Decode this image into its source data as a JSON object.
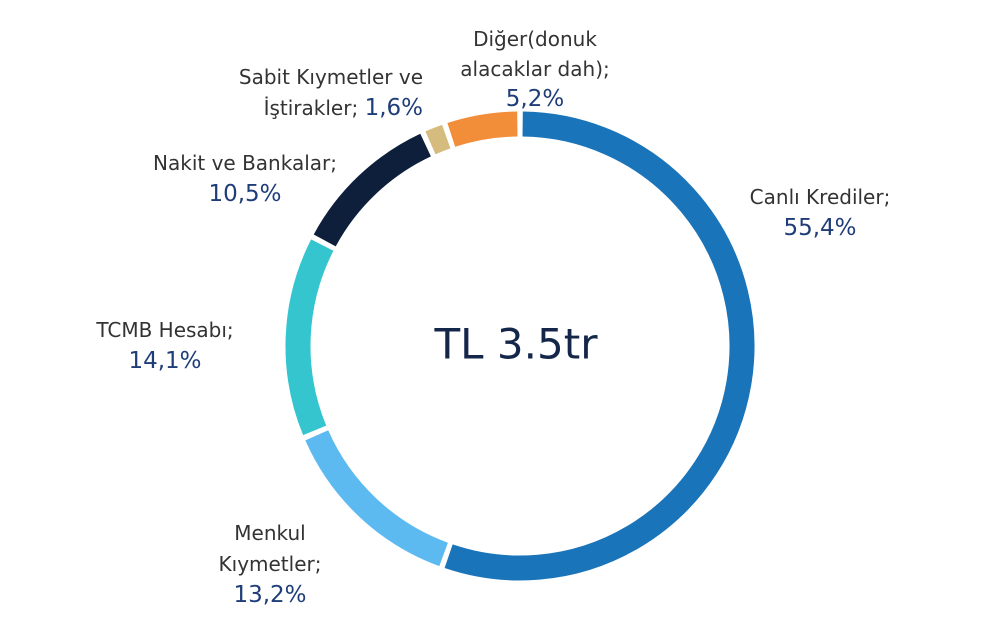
{
  "chart_data": {
    "type": "pie",
    "center_label": "TL 3.5tr",
    "categories": [
      "Canlı Krediler;",
      "Menkul Kıymetler;",
      "TCMB Hesabı;",
      "Nakit ve Bankalar;",
      "Sabit Kıymetler ve İştirakler;",
      "Diğer(donuk alacaklar dah);"
    ],
    "values": [
      55.4,
      13.2,
      14.1,
      10.5,
      1.6,
      5.2
    ],
    "value_labels": [
      "55,4%",
      "13,2%",
      "14,1%",
      "10,5%",
      "1,6%",
      "5,2%"
    ],
    "colors": [
      "#1a74b9",
      "#5dbaf1",
      "#35c5cf",
      "#0e1f3b",
      "#d5bb7d",
      "#f28d3a"
    ]
  }
}
